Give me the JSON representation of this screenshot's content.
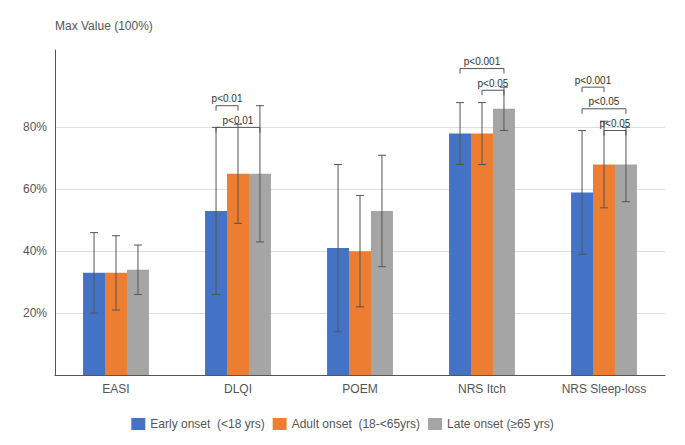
{
  "chart_data": {
    "type": "bar",
    "categories": [
      "EASI",
      "DLQI",
      "POEM",
      "NRS Itch",
      "NRS Sleep-loss"
    ],
    "series": [
      {
        "name": "Early onset  (<18 yrs)",
        "color": "#4472C4",
        "values": [
          33,
          53,
          41,
          78,
          59
        ],
        "errors": [
          13,
          27,
          27,
          10,
          20
        ]
      },
      {
        "name": "Adult onset  (18-<65yrs)",
        "color": "#ED7D31",
        "values": [
          33,
          65,
          40,
          78,
          68
        ],
        "errors": [
          12,
          16,
          18,
          10,
          14
        ]
      },
      {
        "name": "Late onset (≥65 yrs)",
        "color": "#A5A5A5",
        "values": [
          34,
          65,
          53,
          86,
          68
        ],
        "errors": [
          8,
          22,
          18,
          7,
          12
        ]
      }
    ],
    "ylabel": "Max Value (100%)",
    "ylim": [
      0,
      105
    ],
    "yticks": [
      {
        "value": 20,
        "label": "20%"
      },
      {
        "value": 40,
        "label": "40%"
      },
      {
        "value": 60,
        "label": "60%"
      },
      {
        "value": 80,
        "label": "80%"
      }
    ],
    "grid": true,
    "legend": "bottom",
    "annotations": [
      {
        "category": "DLQI",
        "between": [
          "Early onset  (<18 yrs)",
          "Adult onset  (18-<65yrs)"
        ],
        "y": 87,
        "label": "p<0.01"
      },
      {
        "category": "DLQI",
        "between": [
          "Early onset  (<18 yrs)",
          "Late onset (≥65 yrs)"
        ],
        "y": 80,
        "label": "p<0.01"
      },
      {
        "category": "NRS Itch",
        "between": [
          "Early onset  (<18 yrs)",
          "Late onset (≥65 yrs)"
        ],
        "y": 99,
        "label": "p<0.001"
      },
      {
        "category": "NRS Itch",
        "between": [
          "Adult onset  (18-<65yrs)",
          "Late onset (≥65 yrs)"
        ],
        "y": 92,
        "label": "p<0.05"
      },
      {
        "category": "NRS Sleep-loss",
        "between": [
          "Early onset  (<18 yrs)",
          "Adult onset  (18-<65yrs)"
        ],
        "y": 93,
        "label": "p<0.001"
      },
      {
        "category": "NRS Sleep-loss",
        "between": [
          "Early onset  (<18 yrs)",
          "Late onset (≥65 yrs)"
        ],
        "y": 86,
        "label": "p<0.05"
      },
      {
        "category": "NRS Sleep-loss",
        "between": [
          "Adult onset  (18-<65yrs)",
          "Late onset (≥65 yrs)"
        ],
        "y": 79,
        "label": "p<0.05"
      }
    ]
  }
}
